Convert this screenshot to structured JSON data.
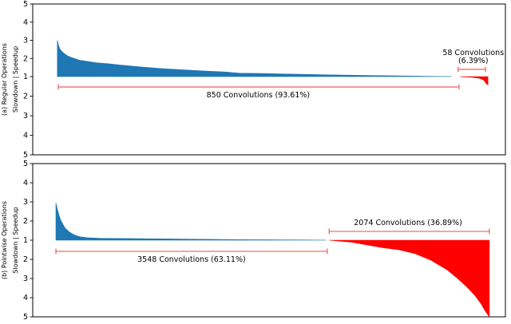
{
  "colors": {
    "speedup_area": "#1f77b4",
    "slowdown_area": "#fe0000",
    "annotation_line": "#ef5c5c",
    "spine": "#000000",
    "text": "#000000",
    "background": "#ffffff"
  },
  "chart_data": [
    {
      "type": "area",
      "panel": "a",
      "ylabel_outer": "(a) Regular Operations",
      "ylabel_inner": "Slowdown | Speedup",
      "yticks": [
        "5",
        "4",
        "3",
        "2",
        "1",
        "2",
        "3",
        "4",
        "5"
      ],
      "axis_note": "y axis: speedup 1-5 upward from center line, slowdown 1-5 downward; no x tick labels",
      "series": [
        {
          "name": "speedup",
          "side": "speedup",
          "color_key": "speedup_area",
          "points": [
            [
              0.052,
              3.0
            ],
            [
              0.0545,
              2.72
            ],
            [
              0.058,
              2.5
            ],
            [
              0.062,
              2.38
            ],
            [
              0.066,
              2.28
            ],
            [
              0.074,
              2.14
            ],
            [
              0.083,
              2.04
            ],
            [
              0.1,
              1.9
            ],
            [
              0.117,
              1.83
            ],
            [
              0.133,
              1.77
            ],
            [
              0.159,
              1.71
            ],
            [
              0.184,
              1.64
            ],
            [
              0.209,
              1.58
            ],
            [
              0.235,
              1.52
            ],
            [
              0.269,
              1.45
            ],
            [
              0.302,
              1.4
            ],
            [
              0.336,
              1.35
            ],
            [
              0.37,
              1.3
            ],
            [
              0.404,
              1.26
            ],
            [
              0.4375,
              1.19
            ],
            [
              0.488,
              1.17
            ],
            [
              0.522,
              1.15
            ],
            [
              0.606,
              1.11
            ],
            [
              0.691,
              1.07
            ],
            [
              0.775,
              1.04
            ],
            [
              0.826,
              1.02
            ],
            [
              0.885,
              1.005
            ]
          ]
        },
        {
          "name": "slowdown",
          "side": "slowdown",
          "color_key": "slowdown_area",
          "points": [
            [
              0.905,
              1.01
            ],
            [
              0.927,
              1.03
            ],
            [
              0.944,
              1.08
            ],
            [
              0.95,
              1.13
            ],
            [
              0.955,
              1.2
            ],
            [
              0.958,
              1.3
            ],
            [
              0.961,
              1.4
            ],
            [
              0.963,
              1.42
            ]
          ]
        }
      ],
      "annotations": [
        {
          "text_lines": [
            "850 Convolutions (93.61%)"
          ],
          "count": "850",
          "percent": "93.61%",
          "x1": 0.054,
          "x2": 0.902,
          "side": "slowdown",
          "level": 1.53,
          "label_x": 0.477,
          "label_side": "below"
        },
        {
          "text_lines": [
            "58 Convolutions",
            "(6.39%)"
          ],
          "count": "58",
          "percent": "6.39%",
          "x1": 0.9,
          "x2": 0.958,
          "side": "speedup",
          "level": 1.4,
          "label_x": 0.932,
          "label_side": "above"
        }
      ]
    },
    {
      "type": "area",
      "panel": "b",
      "ylabel_outer": "(b) Pointwise Operations",
      "ylabel_inner": "Slowdown | Speedup",
      "yticks": [
        "5",
        "4",
        "3",
        "2",
        "1",
        "2",
        "3",
        "4",
        "5"
      ],
      "axis_note": "y axis: speedup 1-5 upward from center line, slowdown 1-5 downward; no x tick labels",
      "series": [
        {
          "name": "speedup",
          "side": "speedup",
          "color_key": "speedup_area",
          "points": [
            [
              0.049,
              2.95
            ],
            [
              0.0524,
              2.6
            ],
            [
              0.0557,
              2.3
            ],
            [
              0.0591,
              2.05
            ],
            [
              0.064,
              1.82
            ],
            [
              0.069,
              1.62
            ],
            [
              0.076,
              1.46
            ],
            [
              0.083,
              1.34
            ],
            [
              0.091,
              1.25
            ],
            [
              0.1,
              1.18
            ],
            [
              0.117,
              1.13
            ],
            [
              0.142,
              1.1
            ],
            [
              0.184,
              1.09
            ],
            [
              0.269,
              1.07
            ],
            [
              0.353,
              1.05
            ],
            [
              0.4375,
              1.03
            ],
            [
              0.522,
              1.02
            ],
            [
              0.62,
              1.005
            ]
          ]
        },
        {
          "name": "slowdown",
          "side": "slowdown",
          "color_key": "slowdown_area",
          "points": [
            [
              0.627,
              1.0
            ],
            [
              0.674,
              1.1
            ],
            [
              0.708,
              1.25
            ],
            [
              0.742,
              1.4
            ],
            [
              0.775,
              1.5
            ],
            [
              0.809,
              1.7
            ],
            [
              0.843,
              2.05
            ],
            [
              0.86,
              2.3
            ],
            [
              0.877,
              2.55
            ],
            [
              0.899,
              3.0
            ],
            [
              0.919,
              3.45
            ],
            [
              0.936,
              3.9
            ],
            [
              0.948,
              4.3
            ],
            [
              0.956,
              4.65
            ],
            [
              0.963,
              4.9
            ],
            [
              0.966,
              5.0
            ]
          ]
        }
      ],
      "annotations": [
        {
          "text_lines": [
            "3548 Convolutions (63.11%)"
          ],
          "count": "3548",
          "percent": "63.11%",
          "x1": 0.049,
          "x2": 0.623,
          "side": "slowdown",
          "level": 1.58,
          "label_x": 0.336,
          "label_side": "below"
        },
        {
          "text_lines": [
            "2074 Convolutions (36.89%)"
          ],
          "count": "2074",
          "percent": "36.89%",
          "x1": 0.627,
          "x2": 0.966,
          "side": "speedup",
          "level": 1.46,
          "label_x": 0.794,
          "label_side": "above"
        }
      ]
    }
  ]
}
